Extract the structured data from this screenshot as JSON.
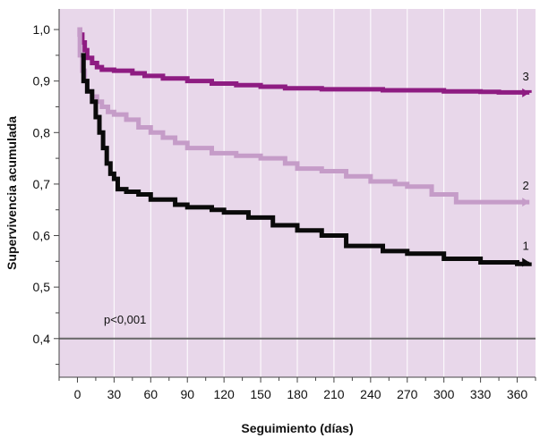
{
  "chart_data": {
    "type": "line",
    "xlabel": "Seguimiento (días)",
    "ylabel": "Supervivencia acumulada",
    "xlim": [
      -15,
      375
    ],
    "ylim": [
      0.325,
      1.04
    ],
    "x_ticks": [
      0,
      30,
      60,
      90,
      120,
      150,
      180,
      210,
      240,
      270,
      300,
      330,
      360
    ],
    "x_tick_labels": [
      "0",
      "30",
      "60",
      "90",
      "120",
      "150",
      "180",
      "210",
      "240",
      "270",
      "300",
      "330",
      "360"
    ],
    "y_ticks": [
      0.4,
      0.5,
      0.6,
      0.7,
      0.8,
      0.9,
      1.0
    ],
    "y_tick_labels": [
      "0,4",
      "0,5",
      "0,6",
      "0,7",
      "0,8",
      "0,9",
      "1,0"
    ],
    "grid": "vertical",
    "background_color": "#e8d7ea",
    "reference_line": {
      "y": 0.4,
      "color": "#666666"
    },
    "annotation": "p<0,001",
    "series": [
      {
        "name": "3",
        "color": "#8e1c82",
        "x": [
          0,
          2,
          4,
          6,
          8,
          12,
          16,
          20,
          30,
          45,
          55,
          70,
          90,
          110,
          130,
          150,
          170,
          200,
          250,
          300,
          330,
          345,
          370
        ],
        "y": [
          1.0,
          0.99,
          0.975,
          0.96,
          0.945,
          0.935,
          0.927,
          0.922,
          0.92,
          0.915,
          0.91,
          0.905,
          0.9,
          0.895,
          0.892,
          0.889,
          0.886,
          0.884,
          0.882,
          0.88,
          0.879,
          0.878,
          0.877
        ]
      },
      {
        "name": "2",
        "color": "#c59cc8",
        "x": [
          0,
          2,
          4,
          6,
          8,
          12,
          16,
          20,
          25,
          30,
          40,
          50,
          60,
          70,
          80,
          90,
          110,
          130,
          150,
          170,
          180,
          200,
          220,
          240,
          260,
          270,
          290,
          310,
          330,
          360,
          370
        ],
        "y": [
          1.0,
          0.95,
          0.92,
          0.9,
          0.88,
          0.87,
          0.86,
          0.85,
          0.84,
          0.835,
          0.825,
          0.81,
          0.8,
          0.79,
          0.78,
          0.77,
          0.76,
          0.755,
          0.75,
          0.74,
          0.73,
          0.725,
          0.715,
          0.705,
          0.7,
          0.695,
          0.68,
          0.665,
          0.665,
          0.665,
          0.665
        ]
      },
      {
        "name": "1",
        "color": "#0a0a0a",
        "x": [
          3,
          5,
          8,
          12,
          15,
          18,
          21,
          24,
          27,
          30,
          33,
          40,
          50,
          60,
          80,
          90,
          110,
          120,
          140,
          160,
          180,
          200,
          220,
          250,
          270,
          300,
          330,
          360,
          370
        ],
        "y": [
          0.95,
          0.9,
          0.88,
          0.86,
          0.83,
          0.8,
          0.77,
          0.74,
          0.72,
          0.71,
          0.69,
          0.685,
          0.68,
          0.67,
          0.66,
          0.655,
          0.65,
          0.645,
          0.635,
          0.62,
          0.61,
          0.6,
          0.58,
          0.57,
          0.565,
          0.555,
          0.548,
          0.545,
          0.548
        ]
      }
    ]
  }
}
